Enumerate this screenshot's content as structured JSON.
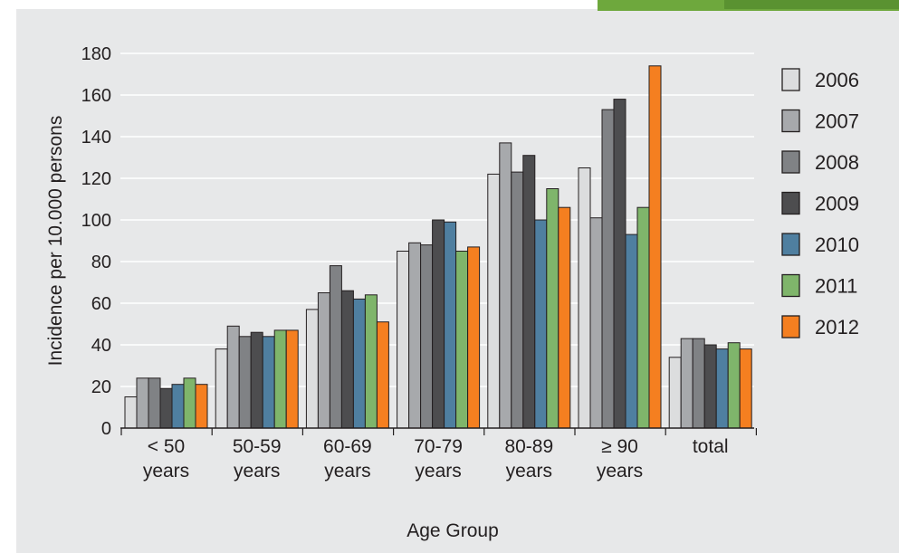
{
  "chart_data": {
    "type": "bar",
    "title": "",
    "xlabel": "Age Group",
    "ylabel": "Incidence per 10.000 persons",
    "ylim": [
      0,
      180
    ],
    "yticks": [
      0,
      20,
      40,
      60,
      80,
      100,
      120,
      140,
      160,
      180
    ],
    "grid": true,
    "legend_position": "right",
    "categories": [
      [
        "< 50",
        "years"
      ],
      [
        "50-59",
        "years"
      ],
      [
        "60-69",
        "years"
      ],
      [
        "70-79",
        "years"
      ],
      [
        "80-89",
        "years"
      ],
      [
        "≥ 90",
        "years"
      ],
      [
        "total"
      ]
    ],
    "series": [
      {
        "name": "2006",
        "color": "#dcddde",
        "values": [
          15,
          38,
          57,
          85,
          122,
          125,
          34
        ]
      },
      {
        "name": "2007",
        "color": "#a7a9ac",
        "values": [
          24,
          49,
          65,
          89,
          137,
          101,
          43
        ]
      },
      {
        "name": "2008",
        "color": "#808285",
        "values": [
          24,
          44,
          78,
          88,
          123,
          153,
          43
        ]
      },
      {
        "name": "2009",
        "color": "#4d4d4f",
        "values": [
          19,
          46,
          66,
          100,
          131,
          158,
          40
        ]
      },
      {
        "name": "2010",
        "color": "#4f7fa0",
        "values": [
          21,
          44,
          62,
          99,
          100,
          93,
          38
        ]
      },
      {
        "name": "2011",
        "color": "#7fb56b",
        "values": [
          24,
          47,
          64,
          85,
          115,
          106,
          41
        ]
      },
      {
        "name": "2012",
        "color": "#f57f20",
        "values": [
          21,
          47,
          51,
          87,
          106,
          174,
          38
        ]
      }
    ]
  }
}
